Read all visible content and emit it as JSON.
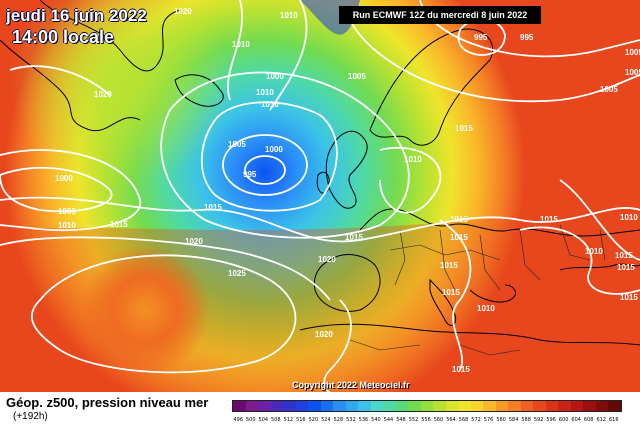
{
  "header": {
    "date_title": "jeudi 16 juin 2022",
    "time_title": "14:00 locale",
    "run_info": "Run ECMWF 12Z du mercredi 8 juin 2022"
  },
  "footer": {
    "legend_title": "Géop. z500, pression niveau mer",
    "legend_subtitle": "(+192h)",
    "copyright": "Copyright 2022 Meteociel.fr"
  },
  "scale": {
    "labels": [
      "496",
      "500",
      "504",
      "508",
      "512",
      "516",
      "520",
      "524",
      "528",
      "532",
      "536",
      "540",
      "544",
      "548",
      "552",
      "556",
      "560",
      "564",
      "568",
      "572",
      "576",
      "580",
      "584",
      "588",
      "592",
      "596",
      "600",
      "604",
      "608",
      "612",
      "616"
    ],
    "colors": [
      "#6a0a6e",
      "#7d1a8c",
      "#6b22a8",
      "#4a2abb",
      "#3133cc",
      "#2040e0",
      "#0d52f2",
      "#1a6ffa",
      "#2b8df8",
      "#33a8f2",
      "#3bc3e8",
      "#4ad6cc",
      "#4fd9a6",
      "#58d97b",
      "#70db52",
      "#95de3f",
      "#b8e232",
      "#d8e52c",
      "#efe52b",
      "#f9d52b",
      "#f9b82a",
      "#f79b28",
      "#f37e25",
      "#ee6122",
      "#e8471e",
      "#dd321a",
      "#cc2216",
      "#b51712",
      "#9c0f0f",
      "#800b0b",
      "#650808"
    ]
  },
  "isobars": [
    {
      "label": "1020",
      "note": "top-left"
    },
    {
      "label": "1010",
      "note": "top-center"
    },
    {
      "label": "995",
      "note": "top-right"
    },
    {
      "label": "1005",
      "note": "right-north"
    },
    {
      "label": "1000",
      "note": "low-center"
    },
    {
      "label": "995",
      "note": "low-core"
    },
    {
      "label": "1015",
      "note": "center"
    },
    {
      "label": "1025",
      "note": "azores-high"
    }
  ],
  "pressure_labels": [
    "1020",
    "1010",
    "995",
    "1010",
    "1020",
    "1005",
    "1010",
    "1000",
    "1010",
    "1005",
    "1000",
    "995",
    "1005",
    "1000",
    "1005",
    "1010",
    "1015",
    "1015",
    "1015",
    "1015",
    "1020",
    "1020",
    "1015",
    "1025",
    "1015",
    "1015",
    "1015",
    "1010",
    "1010",
    "1015",
    "1010",
    "1020",
    "1015",
    "1015",
    "1015",
    "1010",
    "1015",
    "1005",
    "1005"
  ]
}
